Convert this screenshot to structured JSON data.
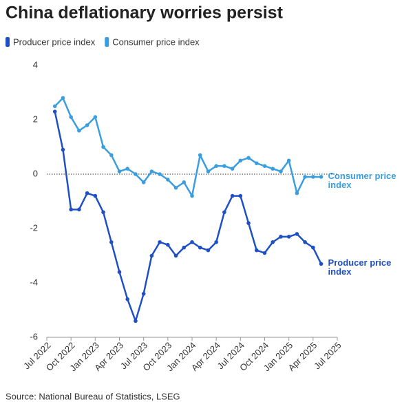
{
  "chart_data": {
    "type": "line",
    "title": "China deflationary worries persist",
    "source": "Source: National Bureau of Statistics, LSEG",
    "x": [
      "2022-08",
      "2022-09",
      "2022-10",
      "2022-11",
      "2022-12",
      "2023-01",
      "2023-02",
      "2023-03",
      "2023-04",
      "2023-05",
      "2023-06",
      "2023-07",
      "2023-08",
      "2023-09",
      "2023-10",
      "2023-11",
      "2023-12",
      "2024-01",
      "2024-02",
      "2024-03",
      "2024-04",
      "2024-05",
      "2024-06",
      "2024-07",
      "2024-08",
      "2024-09",
      "2024-10",
      "2024-11",
      "2024-12",
      "2025-01",
      "2025-02",
      "2025-03",
      "2025-04",
      "2025-05"
    ],
    "series": [
      {
        "name": "Producer price index",
        "color": "#1f4fc4",
        "values": [
          2.3,
          0.9,
          -1.3,
          -1.3,
          -0.7,
          -0.8,
          -1.4,
          -2.5,
          -3.6,
          -4.6,
          -5.4,
          -4.4,
          -3.0,
          -2.5,
          -2.6,
          -3.0,
          -2.7,
          -2.5,
          -2.7,
          -2.8,
          -2.5,
          -1.4,
          -0.8,
          -0.8,
          -1.8,
          -2.8,
          -2.9,
          -2.5,
          -2.3,
          -2.3,
          -2.2,
          -2.5,
          -2.7,
          -3.3
        ]
      },
      {
        "name": "Consumer price index",
        "color": "#3a9de0",
        "values": [
          2.5,
          2.8,
          2.1,
          1.6,
          1.8,
          2.1,
          1.0,
          0.7,
          0.1,
          0.2,
          0.0,
          -0.3,
          0.1,
          0.0,
          -0.2,
          -0.5,
          -0.3,
          -0.8,
          0.7,
          0.1,
          0.3,
          0.3,
          0.2,
          0.5,
          0.6,
          0.4,
          0.3,
          0.2,
          0.1,
          0.5,
          -0.7,
          -0.1,
          -0.1,
          -0.1
        ]
      }
    ],
    "xlim": [
      "2022-07",
      "2025-07"
    ],
    "xticks": [
      {
        "value": "2022-07",
        "label": "Jul 2022"
      },
      {
        "value": "2022-10",
        "label": "Oct 2022"
      },
      {
        "value": "2023-01",
        "label": "Jan 2023"
      },
      {
        "value": "2023-04",
        "label": "Apr 2023"
      },
      {
        "value": "2023-07",
        "label": "Jul 2023"
      },
      {
        "value": "2023-10",
        "label": "Oct 2023"
      },
      {
        "value": "2024-01",
        "label": "Jan 2024"
      },
      {
        "value": "2024-04",
        "label": "Apr 2024"
      },
      {
        "value": "2024-07",
        "label": "Jul 2024"
      },
      {
        "value": "2024-10",
        "label": "Oct 2024"
      },
      {
        "value": "2025-01",
        "label": "Jan 2025"
      },
      {
        "value": "2025-04",
        "label": "Apr 2025"
      },
      {
        "value": "2025-07",
        "label": "Jul 2025"
      }
    ],
    "ylim": [
      -6,
      4
    ],
    "yticks": [
      -6,
      -4,
      -2,
      0,
      2,
      4
    ]
  }
}
